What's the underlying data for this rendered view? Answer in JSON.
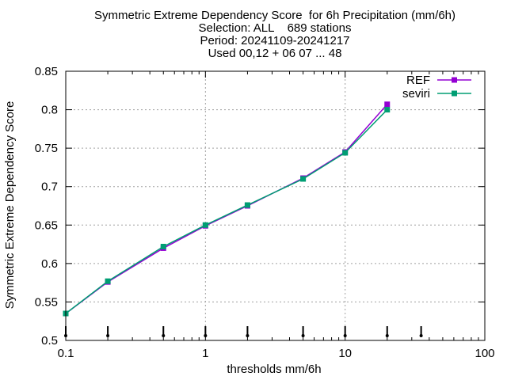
{
  "chart_data": {
    "type": "line",
    "title_lines": [
      "Symmetric Extreme Dependency Score  for 6h Precipitation (mm/6h)",
      "Selection: ALL    689 stations",
      "Period: 20241109-20241217",
      "Used 00,12 + 06 07 ... 48"
    ],
    "xlabel": "thresholds mm/6h",
    "ylabel": "Symmetric Extreme Dependency Score",
    "x_scale": "log",
    "xlim": [
      0.1,
      100
    ],
    "ylim": [
      0.5,
      0.85
    ],
    "x_ticks": [
      0.1,
      1,
      10,
      100
    ],
    "x_tick_labels": [
      "0.1",
      "1",
      "10",
      "100"
    ],
    "y_ticks": [
      0.5,
      0.55,
      0.6,
      0.65,
      0.7,
      0.75,
      0.8,
      0.85
    ],
    "y_tick_labels": [
      "0.5",
      "0.55",
      "0.6",
      "0.65",
      "0.7",
      "0.75",
      "0.8",
      "0.85"
    ],
    "grid": true,
    "legend_position": "top-right",
    "threshold_markers": [
      0.1,
      0.2,
      0.5,
      1,
      2,
      5,
      10,
      20,
      35
    ],
    "x": [
      0.1,
      0.2,
      0.5,
      1,
      2,
      5,
      10,
      20
    ],
    "series": [
      {
        "name": "REF",
        "color": "#9400d3",
        "values": [
          0.535,
          0.576,
          0.62,
          0.649,
          0.675,
          0.711,
          0.745,
          0.807
        ]
      },
      {
        "name": "seviri",
        "color": "#009e73",
        "values": [
          0.535,
          0.577,
          0.622,
          0.65,
          0.676,
          0.71,
          0.744,
          0.8
        ]
      }
    ]
  }
}
